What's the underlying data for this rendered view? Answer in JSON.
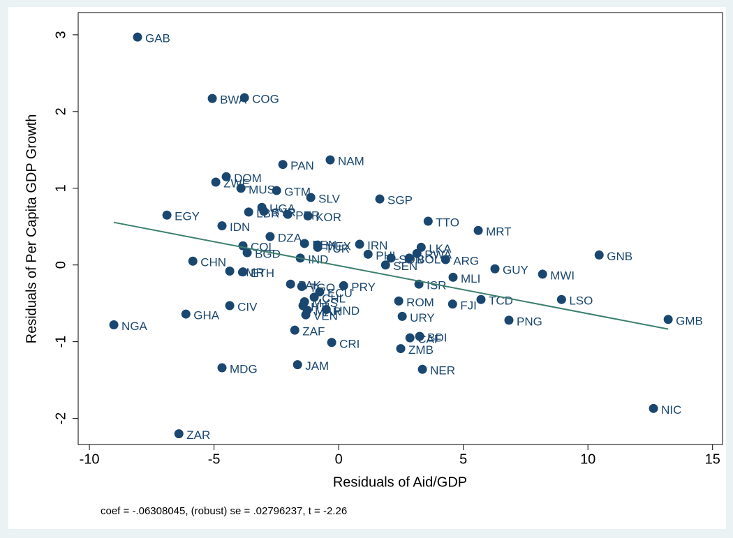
{
  "chart_data": {
    "type": "scatter",
    "x_label": "Residuals of Aid/GDP",
    "y_label": "Residuals of Per Capita GDP Growth",
    "note": "coef = -.06308045, (robust) se = .02796237, t = -2.26",
    "xlim": [
      -10.45,
      15.4
    ],
    "ylim": [
      -2.34,
      3.29
    ],
    "xticks": [
      -10,
      -5,
      0,
      5,
      10,
      15
    ],
    "yticks": [
      -2,
      -1,
      0,
      1,
      2,
      3
    ],
    "color": "#1a476f",
    "fit_color": "#3d7f6f",
    "fit_x": [
      -9.02,
      13.22
    ],
    "fit_y": [
      0.555,
      -0.836
    ],
    "labels": [
      "GAB",
      "BWA",
      "COG",
      "PAN",
      "NAM",
      "DOM",
      "ZWE",
      "MUS",
      "GTM",
      "SLV",
      "SGP",
      "EGY",
      "UGA",
      "LBR",
      "SYR",
      "PER",
      "KOR",
      "TTO",
      "IDN",
      "MRT",
      "DZA",
      "COL",
      "BGD",
      "BEN",
      "MEX",
      "TUR",
      "IRN",
      "LKA",
      "CHN",
      "IND",
      "PHL",
      "SDN",
      "BOL",
      "RWA",
      "ARG",
      "SEN",
      "GNB",
      "GUY",
      "MWI",
      "MLI",
      "CMR",
      "ETH",
      "PAK",
      "TGO",
      "ECU",
      "PRY",
      "ISR",
      "CHL",
      "MYS",
      "HTI",
      "MAR",
      "HND",
      "VEN",
      "ROM",
      "FJI",
      "TCD",
      "LSO",
      "CIV",
      "GHA",
      "URY",
      "PNG",
      "GMB",
      "NGA",
      "ZAF",
      "BDI",
      "CAF",
      "CRI",
      "ZMB",
      "JAM",
      "MDG",
      "NER",
      "NIC",
      "ZAR"
    ],
    "x": [
      -8.07,
      -5.07,
      -3.78,
      -2.24,
      -0.34,
      -4.51,
      -4.93,
      -3.92,
      -2.49,
      -1.12,
      1.65,
      -6.89,
      -3.08,
      -3.61,
      -3.0,
      -2.04,
      -1.23,
      3.59,
      -4.68,
      5.6,
      -2.75,
      -3.84,
      -3.67,
      -1.37,
      -0.84,
      -0.84,
      0.84,
      3.31,
      -5.85,
      -1.54,
      1.18,
      2.1,
      2.83,
      3.14,
      4.29,
      1.88,
      10.45,
      6.27,
      8.18,
      4.59,
      -4.37,
      -3.84,
      -1.93,
      -1.48,
      -0.76,
      0.2,
      3.22,
      -0.98,
      -1.37,
      -1.43,
      -1.26,
      -0.5,
      -1.32,
      2.41,
      4.57,
      5.71,
      8.94,
      -4.37,
      -6.13,
      2.55,
      6.83,
      13.22,
      -9.02,
      -1.76,
      3.25,
      2.86,
      -0.28,
      2.49,
      -1.65,
      -4.68,
      3.36,
      12.63,
      -6.41
    ],
    "values": [
      2.97,
      2.17,
      2.18,
      1.31,
      1.37,
      1.15,
      1.08,
      1.0,
      0.97,
      0.88,
      0.86,
      0.65,
      0.75,
      0.69,
      0.7,
      0.66,
      0.64,
      0.57,
      0.51,
      0.45,
      0.37,
      0.25,
      0.16,
      0.28,
      0.26,
      0.23,
      0.27,
      0.23,
      0.05,
      0.09,
      0.14,
      0.09,
      0.09,
      0.15,
      0.07,
      0.0,
      0.13,
      -0.05,
      -0.12,
      -0.16,
      -0.08,
      -0.09,
      -0.25,
      -0.28,
      -0.35,
      -0.27,
      -0.25,
      -0.42,
      -0.48,
      -0.53,
      -0.59,
      -0.58,
      -0.65,
      -0.47,
      -0.51,
      -0.45,
      -0.45,
      -0.53,
      -0.64,
      -0.67,
      -0.72,
      -0.71,
      -0.78,
      -0.85,
      -0.93,
      -0.95,
      -1.01,
      -1.09,
      -1.3,
      -1.34,
      -1.36,
      -1.87,
      -2.2
    ]
  }
}
